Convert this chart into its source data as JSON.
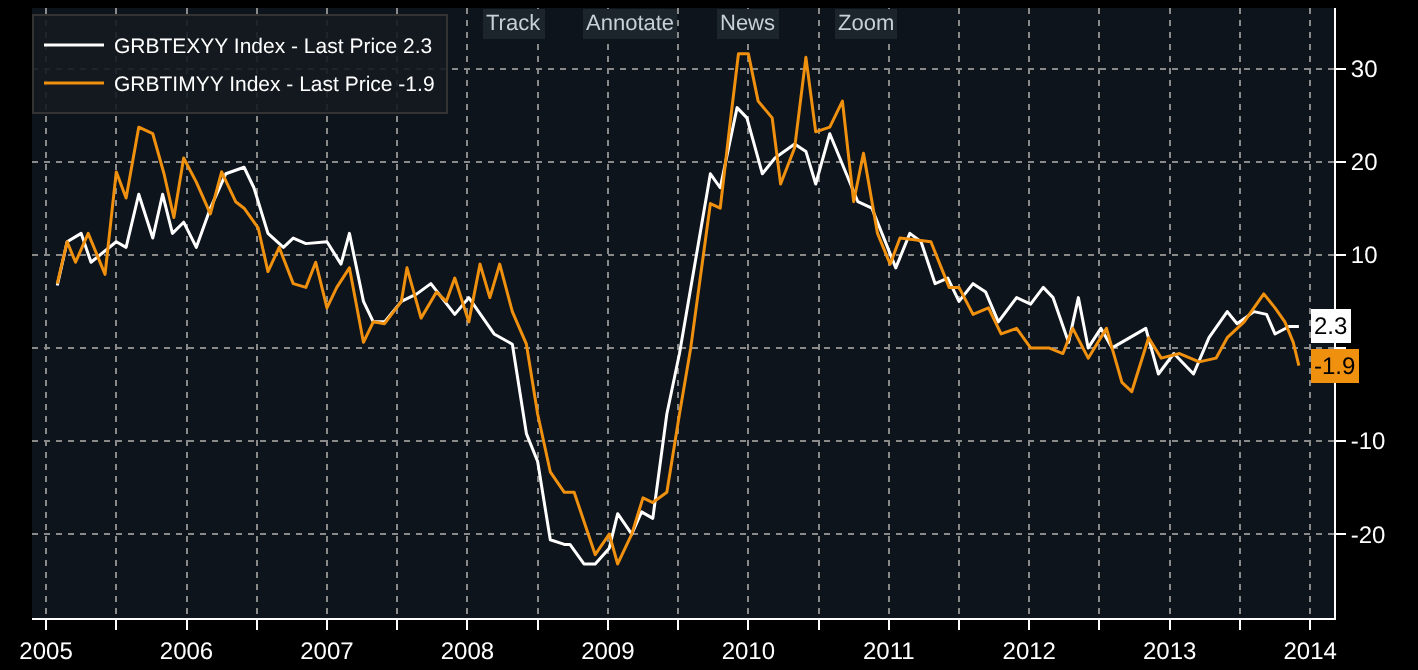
{
  "chart_data": {
    "type": "line",
    "series": [
      {
        "name": "GRBTEXYY Index - Last Price 2.3",
        "color": "#ffffff",
        "x": [
          2005.58,
          2005.65,
          2005.75,
          2005.82,
          2006.0,
          2006.07,
          2006.16,
          2006.26,
          2006.33,
          2006.4,
          2006.48,
          2006.57,
          2006.67,
          2006.78,
          2006.91,
          2006.98,
          2007.08,
          2007.19,
          2007.26,
          2007.35,
          2007.5,
          2007.6,
          2007.66,
          2007.76,
          2007.83,
          2007.91,
          2008.03,
          2008.14,
          2008.24,
          2008.41,
          2008.51,
          2008.69,
          2008.82,
          2008.92,
          2009.0,
          2009.09,
          2009.19,
          2009.23,
          2009.33,
          2009.41,
          2009.51,
          2009.57,
          2009.67,
          2009.74,
          2009.82,
          2009.92,
          2010.01,
          2010.23,
          2010.3,
          2010.42,
          2010.49,
          2010.6,
          2010.69,
          2010.83,
          2010.91,
          2010.98,
          2011.08,
          2011.28,
          2011.38,
          2011.55,
          2011.65,
          2011.73,
          2011.83,
          2011.92,
          2012.0,
          2012.1,
          2012.19,
          2012.28,
          2012.41,
          2012.51,
          2012.6,
          2012.67,
          2012.78,
          2012.85,
          2012.92,
          2013.01,
          2013.09,
          2013.33,
          2013.42,
          2013.53,
          2013.67,
          2013.78,
          2013.91,
          2013.98,
          2014.1,
          2014.19,
          2014.25,
          2014.35,
          2014.42
        ],
        "values": [
          6.7,
          11.4,
          12.3,
          9.2,
          11.4,
          10.8,
          16.5,
          11.8,
          16.5,
          12.3,
          13.5,
          10.8,
          15.0,
          18.7,
          19.4,
          17.2,
          12.3,
          10.8,
          11.8,
          11.2,
          11.4,
          9.0,
          12.3,
          5.0,
          2.8,
          2.8,
          5.0,
          5.8,
          6.9,
          3.6,
          5.4,
          1.5,
          0.4,
          -9.2,
          -12.2,
          -20.6,
          -21.1,
          -21.1,
          -23.2,
          -23.2,
          -21.5,
          -17.8,
          -20.0,
          -17.6,
          -18.3,
          -7.1,
          -0.6,
          18.7,
          17.2,
          25.8,
          24.7,
          18.7,
          20.4,
          21.9,
          21.1,
          17.6,
          23.0,
          15.7,
          15.0,
          8.6,
          12.3,
          11.4,
          6.9,
          7.5,
          5.0,
          6.9,
          6.0,
          2.8,
          5.4,
          4.7,
          6.5,
          5.4,
          0.6,
          5.4,
          0.0,
          2.1,
          0.0,
          2.1,
          -2.8,
          -0.6,
          -2.8,
          1.1,
          3.9,
          2.6,
          3.9,
          3.6,
          1.5,
          2.3,
          2.3
        ]
      },
      {
        "name": "GRBTIMYY Index - Last Price -1.9",
        "color": "#f0900f",
        "x": [
          2005.58,
          2005.65,
          2005.71,
          2005.8,
          2005.92,
          2006.0,
          2006.07,
          2006.16,
          2006.26,
          2006.34,
          2006.41,
          2006.48,
          2006.57,
          2006.67,
          2006.75,
          2006.85,
          2006.91,
          2007.01,
          2007.08,
          2007.16,
          2007.26,
          2007.35,
          2007.42,
          2007.5,
          2007.57,
          2007.66,
          2007.76,
          2007.83,
          2007.91,
          2008.03,
          2008.07,
          2008.17,
          2008.28,
          2008.35,
          2008.41,
          2008.51,
          2008.59,
          2008.66,
          2008.73,
          2008.82,
          2008.92,
          2009.0,
          2009.09,
          2009.19,
          2009.26,
          2009.41,
          2009.51,
          2009.57,
          2009.67,
          2009.75,
          2009.82,
          2009.92,
          2010.01,
          2010.09,
          2010.23,
          2010.3,
          2010.37,
          2010.43,
          2010.5,
          2010.57,
          2010.67,
          2010.73,
          2010.83,
          2010.91,
          2010.98,
          2011.08,
          2011.17,
          2011.25,
          2011.32,
          2011.42,
          2011.51,
          2011.58,
          2011.8,
          2011.93,
          2012.0,
          2012.1,
          2012.21,
          2012.3,
          2012.41,
          2012.51,
          2012.64,
          2012.74,
          2012.81,
          2012.92,
          2013.05,
          2013.16,
          2013.23,
          2013.35,
          2013.44,
          2013.57,
          2013.71,
          2013.83,
          2013.91,
          2014.03,
          2014.17,
          2014.25,
          2014.32,
          2014.38,
          2014.42
        ],
        "values": [
          6.9,
          11.4,
          9.2,
          12.3,
          7.9,
          18.9,
          16.1,
          23.7,
          23.0,
          18.7,
          14.0,
          20.4,
          17.8,
          14.4,
          18.9,
          15.7,
          15.0,
          12.9,
          8.2,
          10.8,
          6.9,
          6.5,
          9.2,
          4.3,
          6.5,
          8.6,
          0.6,
          2.8,
          2.6,
          5.0,
          8.6,
          3.2,
          6.0,
          5.0,
          7.5,
          2.8,
          9.0,
          5.4,
          9.0,
          3.9,
          0.4,
          -7.1,
          -13.3,
          -15.5,
          -15.5,
          -22.2,
          -20.0,
          -23.2,
          -20.0,
          -16.1,
          -16.6,
          -15.5,
          -7.1,
          0.0,
          15.5,
          15.0,
          24.1,
          31.6,
          31.6,
          26.5,
          24.7,
          17.6,
          21.5,
          31.2,
          23.2,
          23.7,
          26.5,
          15.7,
          20.9,
          12.3,
          9.0,
          11.8,
          11.4,
          6.5,
          6.5,
          3.6,
          4.3,
          1.5,
          2.1,
          0.0,
          0.0,
          -0.6,
          2.1,
          -1.1,
          2.1,
          -3.7,
          -4.7,
          1.1,
          -1.1,
          -0.6,
          -1.5,
          -1.1,
          1.1,
          2.8,
          5.8,
          4.3,
          2.8,
          0.6,
          -1.9
        ]
      }
    ],
    "xlim": [
      2005.4,
      2014.67
    ],
    "xticks": [
      {
        "value": 2005.5,
        "label": "2005"
      },
      {
        "value": 2006,
        "label": null
      },
      {
        "value": 2006.5,
        "label": "2006"
      },
      {
        "value": 2007,
        "label": null
      },
      {
        "value": 2007.5,
        "label": "2007"
      },
      {
        "value": 2008,
        "label": null
      },
      {
        "value": 2008.5,
        "label": "2008"
      },
      {
        "value": 2009,
        "label": null
      },
      {
        "value": 2009.5,
        "label": "2009"
      },
      {
        "value": 2010,
        "label": null
      },
      {
        "value": 2010.5,
        "label": "2010"
      },
      {
        "value": 2011,
        "label": null
      },
      {
        "value": 2011.5,
        "label": "2011"
      },
      {
        "value": 2012,
        "label": null
      },
      {
        "value": 2012.5,
        "label": "2012"
      },
      {
        "value": 2013,
        "label": null
      },
      {
        "value": 2013.5,
        "label": "2013"
      },
      {
        "value": 2014,
        "label": null
      },
      {
        "value": 2014.5,
        "label": "2014"
      }
    ],
    "ylim": [
      -29,
      36.5
    ],
    "yticks": [
      -20,
      -10,
      {
        "value": 0,
        "label": null
      },
      10,
      20,
      30
    ],
    "grid": true,
    "legend": "top left",
    "line_style": "solid",
    "annotations": [
      {
        "text": "2.3",
        "x": 2014.42,
        "y": 2.3
      },
      {
        "text": "-1.9",
        "x": 2014.42,
        "y": -1.9
      },
      "Track",
      "Annotate",
      "News",
      "Zoom"
    ]
  }
}
